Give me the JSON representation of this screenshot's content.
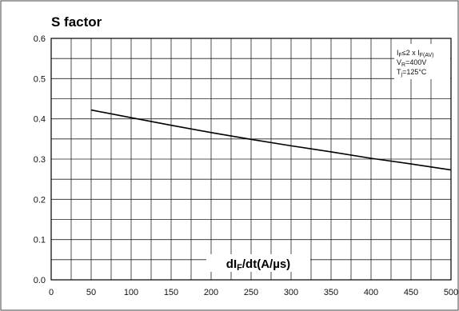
{
  "chart_data": {
    "type": "line",
    "title": "S factor",
    "xlabel": {
      "main": "dI",
      "sub": "F",
      "rest": "/dt(A/µs)"
    },
    "ylabel": "",
    "xlim": [
      0,
      500
    ],
    "ylim": [
      0,
      0.6
    ],
    "x_ticks": [
      "0",
      "50",
      "100",
      "150",
      "200",
      "250",
      "300",
      "350",
      "400",
      "450",
      "500"
    ],
    "y_ticks": [
      "0.0",
      "0.1",
      "0.2",
      "0.3",
      "0.4",
      "0.5",
      "0.6"
    ],
    "grid": true,
    "conditions": [
      {
        "main": "I",
        "sub1": "F",
        "mid": "≤2 x I",
        "sub2": "F(AV)",
        "tail": ""
      },
      {
        "main": "V",
        "sub1": "R",
        "mid": "=400V",
        "sub2": "",
        "tail": ""
      },
      {
        "main": "T",
        "sub1": "j",
        "mid": "=125°C",
        "sub2": "",
        "tail": ""
      }
    ],
    "series": [
      {
        "x": [
          50,
          100,
          150,
          200,
          250,
          300,
          350,
          400,
          450,
          500
        ],
        "y": [
          0.422,
          0.403,
          0.384,
          0.366,
          0.349,
          0.333,
          0.318,
          0.302,
          0.288,
          0.273
        ]
      }
    ]
  }
}
